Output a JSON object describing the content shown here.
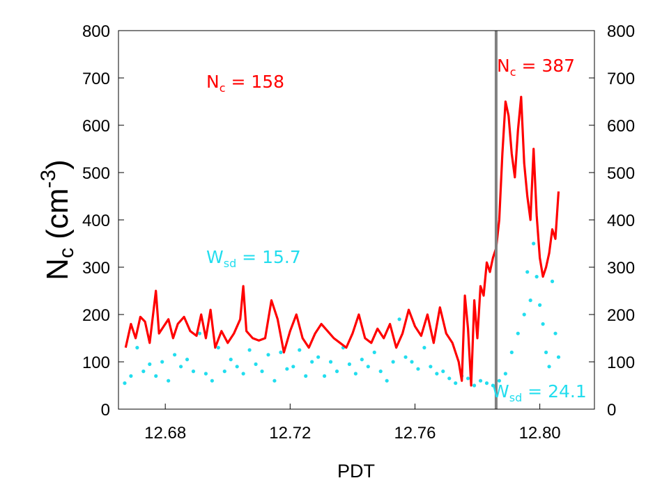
{
  "chart_data": {
    "type": "line",
    "xlabel": "PDT",
    "ylabel": {
      "main": "N",
      "sub": "c",
      "unit_open": " (cm",
      "unit_exp": "-3",
      "unit_close": ")"
    },
    "xlim": [
      12.665,
      12.8175
    ],
    "ylim": [
      0,
      800
    ],
    "xticks": [
      12.68,
      12.72,
      12.76,
      12.8
    ],
    "xtick_labels": [
      "12.68",
      "12.72",
      "12.76",
      "12.80"
    ],
    "yticks": [
      0,
      100,
      200,
      300,
      400,
      500,
      600,
      700,
      800
    ],
    "ytick_labels": [
      "0",
      "100",
      "200",
      "300",
      "400",
      "500",
      "600",
      "700",
      "800"
    ],
    "vertical_line_x": 12.786,
    "grid": false,
    "colors": {
      "nc": "#ff0000",
      "wsd": "#22ddee",
      "vline": "#808080"
    },
    "annotations": [
      {
        "id": "nc-left",
        "main": "N",
        "sub": "c",
        "rest": " = 158",
        "color": "#ff0000"
      },
      {
        "id": "nc-right",
        "main": "N",
        "sub": "c",
        "rest": " = 387",
        "color": "#ff0000"
      },
      {
        "id": "wsd-left",
        "main": "W",
        "sub": "sd",
        "rest": " = 15.7",
        "color": "#22ddee"
      },
      {
        "id": "wsd-right",
        "main": "W",
        "sub": "sd",
        "rest": " = 24.1",
        "color": "#22ddee"
      }
    ],
    "series": [
      {
        "style": "line",
        "x": [
          12.6673,
          12.669,
          12.6705,
          12.672,
          12.6735,
          12.675,
          12.677,
          12.678,
          12.6795,
          12.681,
          12.6825,
          12.684,
          12.686,
          12.688,
          12.69,
          12.6915,
          12.693,
          12.6945,
          12.696,
          12.698,
          12.7,
          12.702,
          12.704,
          12.705,
          12.706,
          12.708,
          12.71,
          12.712,
          12.714,
          12.716,
          12.718,
          12.72,
          12.722,
          12.724,
          12.726,
          12.728,
          12.73,
          12.732,
          12.734,
          12.736,
          12.738,
          12.74,
          12.742,
          12.744,
          12.746,
          12.748,
          12.75,
          12.752,
          12.754,
          12.756,
          12.758,
          12.76,
          12.762,
          12.764,
          12.766,
          12.768,
          12.77,
          12.772,
          12.774,
          12.775,
          12.776,
          12.777,
          12.778,
          12.779,
          12.78,
          12.781,
          12.782,
          12.783,
          12.784,
          12.785,
          12.786,
          12.787,
          12.788,
          12.789,
          12.79,
          12.791,
          12.792,
          12.793,
          12.794,
          12.795,
          12.796,
          12.797,
          12.798,
          12.799,
          12.8,
          12.801,
          12.802,
          12.803,
          12.804,
          12.805,
          12.806
        ],
        "y": [
          130,
          180,
          150,
          195,
          185,
          140,
          250,
          160,
          175,
          190,
          150,
          180,
          195,
          165,
          155,
          200,
          150,
          210,
          130,
          165,
          140,
          160,
          190,
          260,
          165,
          150,
          145,
          150,
          230,
          190,
          120,
          165,
          200,
          150,
          130,
          160,
          180,
          165,
          150,
          140,
          130,
          160,
          200,
          150,
          140,
          170,
          150,
          180,
          130,
          160,
          210,
          175,
          155,
          200,
          140,
          215,
          160,
          140,
          100,
          60,
          240,
          170,
          50,
          230,
          150,
          260,
          240,
          310,
          290,
          320,
          340,
          400,
          540,
          650,
          620,
          540,
          490,
          590,
          660,
          520,
          450,
          400,
          550,
          410,
          320,
          280,
          300,
          330,
          380,
          360,
          460
        ]
      },
      {
        "style": "dots",
        "x": [
          12.667,
          12.669,
          12.671,
          12.673,
          12.675,
          12.677,
          12.679,
          12.681,
          12.683,
          12.685,
          12.687,
          12.689,
          12.691,
          12.693,
          12.695,
          12.697,
          12.699,
          12.701,
          12.703,
          12.705,
          12.707,
          12.709,
          12.711,
          12.713,
          12.715,
          12.717,
          12.719,
          12.721,
          12.723,
          12.725,
          12.727,
          12.729,
          12.731,
          12.733,
          12.735,
          12.737,
          12.739,
          12.741,
          12.743,
          12.745,
          12.747,
          12.749,
          12.751,
          12.753,
          12.755,
          12.757,
          12.759,
          12.761,
          12.763,
          12.765,
          12.767,
          12.769,
          12.771,
          12.773,
          12.775,
          12.777,
          12.779,
          12.781,
          12.783,
          12.785,
          12.787,
          12.789,
          12.791,
          12.793,
          12.795,
          12.796,
          12.797,
          12.798,
          12.799,
          12.8,
          12.801,
          12.802,
          12.803,
          12.804,
          12.805,
          12.806
        ],
        "y": [
          55,
          70,
          130,
          80,
          95,
          70,
          100,
          60,
          115,
          90,
          105,
          80,
          160,
          75,
          60,
          130,
          80,
          105,
          90,
          75,
          125,
          95,
          80,
          115,
          60,
          120,
          85,
          90,
          125,
          70,
          100,
          110,
          70,
          100,
          80,
          130,
          95,
          75,
          105,
          90,
          120,
          80,
          60,
          100,
          190,
          110,
          100,
          85,
          130,
          90,
          75,
          80,
          65,
          55,
          70,
          65,
          50,
          60,
          55,
          50,
          60,
          75,
          120,
          160,
          200,
          290,
          230,
          350,
          280,
          220,
          180,
          120,
          90,
          270,
          160,
          110
        ]
      }
    ]
  }
}
